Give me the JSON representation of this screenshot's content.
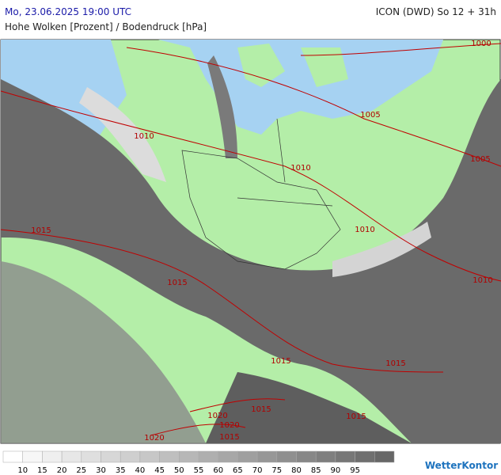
{
  "header": {
    "title": "Mo, 23.06.2025 19:00 UTC",
    "model": "ICON (DWD) So 12 + 31h",
    "subtitle": "Hohe Wolken [Prozent] / Bodendruck [hPa]"
  },
  "isobars": [
    "1000",
    "1005",
    "1005",
    "1010",
    "1010",
    "1010",
    "1015",
    "1015",
    "1015",
    "1015",
    "1015",
    "1015",
    "1020",
    "1020",
    "1020",
    "1015",
    "1010"
  ],
  "legend": {
    "labels": [
      10,
      15,
      20,
      25,
      30,
      35,
      40,
      45,
      50,
      55,
      60,
      65,
      70,
      75,
      80,
      85,
      90,
      95
    ],
    "colors": [
      "#ffffff",
      "#f7f7f7",
      "#efefef",
      "#e7e7e7",
      "#dfdfdf",
      "#d7d7d7",
      "#cfcfcf",
      "#c7c7c7",
      "#bfbfbf",
      "#b7b7b7",
      "#afafaf",
      "#a7a7a7",
      "#9f9f9f",
      "#979797",
      "#8f8f8f",
      "#878787",
      "#7f7f7f",
      "#777777",
      "#6f6f6f",
      "#676767"
    ]
  },
  "brand": "WetterKontor"
}
